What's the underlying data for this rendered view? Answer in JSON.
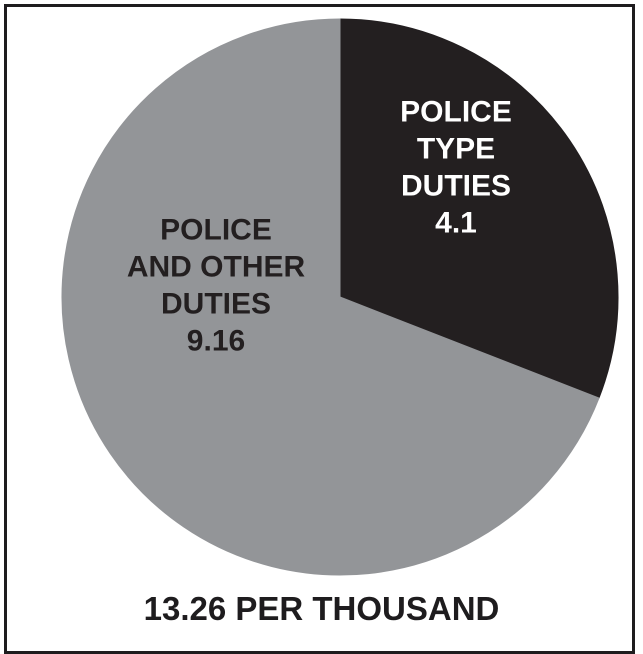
{
  "chart_data": {
    "type": "pie",
    "title": "13.26 PER THOUSAND",
    "total": 13.26,
    "slices": [
      {
        "label_lines": [
          "POLICE",
          "TYPE",
          "DUTIES"
        ],
        "value": 4.1,
        "value_label": "4.1",
        "color": "#231f20",
        "label_color": "#ffffff"
      },
      {
        "label_lines": [
          "POLICE",
          "AND OTHER",
          "DUTIES"
        ],
        "value": 9.16,
        "value_label": "9.16",
        "color": "#939598",
        "label_color": "#231f20"
      }
    ]
  }
}
